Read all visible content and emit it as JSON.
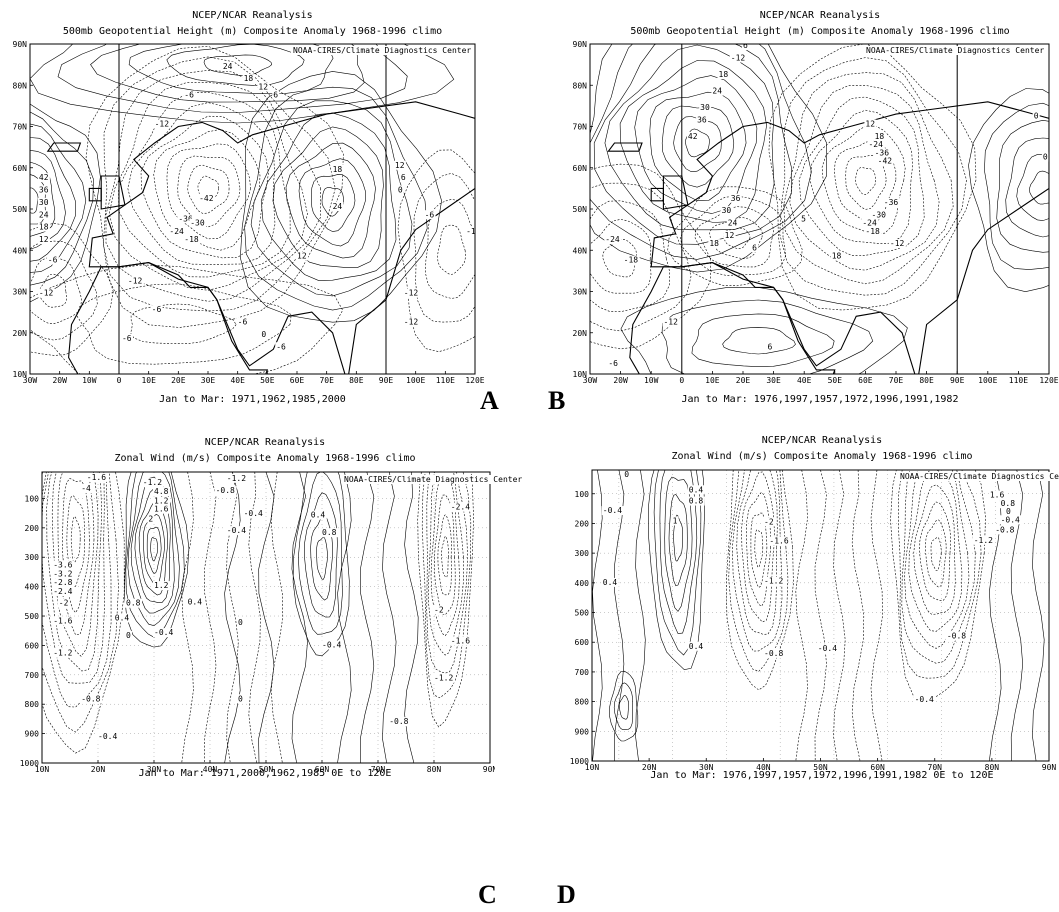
{
  "chart_data": [
    {
      "panel": "A",
      "type": "other",
      "header": "NCEP/NCAR Reanalysis",
      "title": "500mb Geopotential Height (m) Composite Anomaly 1968-1996 climo",
      "credit": "NOAA-CIRES/Climate Diagnostics Center",
      "caption": "Jan to Mar: 1971,1962,1985,2000",
      "x_ticks": [
        "30W",
        "20W",
        "10W",
        "0",
        "10E",
        "20E",
        "30E",
        "40E",
        "50E",
        "60E",
        "70E",
        "80E",
        "90E",
        "100E",
        "110E",
        "120E"
      ],
      "y_ticks": [
        "10N",
        "20N",
        "30N",
        "40N",
        "50N",
        "60N",
        "70N",
        "80N",
        "90N"
      ],
      "xlim": [
        -30,
        120
      ],
      "ylim": [
        10,
        90
      ],
      "contour_labels": [
        {
          "text": "24",
          "x": 35,
          "y": 84
        },
        {
          "text": "18",
          "x": 42,
          "y": 81
        },
        {
          "text": "12",
          "x": 47,
          "y": 79
        },
        {
          "text": "6",
          "x": 52,
          "y": 77
        },
        {
          "text": "-6",
          "x": 22,
          "y": 77
        },
        {
          "text": "-12",
          "x": 12,
          "y": 70
        },
        {
          "text": "-42",
          "x": 27,
          "y": 52
        },
        {
          "text": "-36",
          "x": 20,
          "y": 47
        },
        {
          "text": "-30",
          "x": 24,
          "y": 46
        },
        {
          "text": "-24",
          "x": 17,
          "y": 44
        },
        {
          "text": "-18",
          "x": 22,
          "y": 42
        },
        {
          "text": "18",
          "x": 72,
          "y": 59
        },
        {
          "text": "24",
          "x": 72,
          "y": 50
        },
        {
          "text": "12",
          "x": 60,
          "y": 38
        },
        {
          "text": "42",
          "x": -27,
          "y": 57
        },
        {
          "text": "36",
          "x": -27,
          "y": 54
        },
        {
          "text": "30",
          "x": -27,
          "y": 51
        },
        {
          "text": "24",
          "x": -27,
          "y": 48
        },
        {
          "text": "18",
          "x": -27,
          "y": 45
        },
        {
          "text": "12",
          "x": -27,
          "y": 42
        },
        {
          "text": "-6",
          "x": -24,
          "y": 37
        },
        {
          "text": "-12",
          "x": -27,
          "y": 29
        },
        {
          "text": "-12",
          "x": 3,
          "y": 32
        },
        {
          "text": "-6",
          "x": 11,
          "y": 25
        },
        {
          "text": "-6",
          "x": 40,
          "y": 22
        },
        {
          "text": "0",
          "x": 48,
          "y": 19
        },
        {
          "text": "-6",
          "x": 53,
          "y": 16
        },
        {
          "text": "12",
          "x": 93,
          "y": 60
        },
        {
          "text": "6",
          "x": 95,
          "y": 57
        },
        {
          "text": "0",
          "x": 94,
          "y": 54
        },
        {
          "text": "-6",
          "x": 103,
          "y": 48
        },
        {
          "text": "-12",
          "x": 117,
          "y": 44
        },
        {
          "text": "-12",
          "x": 96,
          "y": 29
        },
        {
          "text": "-12",
          "x": 96,
          "y": 22
        },
        {
          "text": "-6",
          "x": 1,
          "y": 18
        }
      ]
    },
    {
      "panel": "B",
      "type": "other",
      "header": "NCEP/NCAR Reanalysis",
      "title": "500mb Geopotential Height (m) Composite Anomaly 1968-1996 climo",
      "credit": "NOAA-CIRES/Climate Diagnostics Center",
      "caption": "Jan to Mar: 1976,1997,1957,1972,1996,1991,1982",
      "x_ticks": [
        "30W",
        "20W",
        "10W",
        "0",
        "10E",
        "20E",
        "30E",
        "40E",
        "50E",
        "60E",
        "70E",
        "80E",
        "90E",
        "100E",
        "110E",
        "120E"
      ],
      "y_ticks": [
        "10N",
        "20N",
        "30N",
        "40N",
        "50N",
        "60N",
        "70N",
        "80N",
        "90N"
      ],
      "xlim": [
        -30,
        120
      ],
      "ylim": [
        10,
        90
      ],
      "contour_labels": [
        {
          "text": "6",
          "x": 20,
          "y": 89
        },
        {
          "text": "-12",
          "x": 16,
          "y": 86
        },
        {
          "text": "18",
          "x": 12,
          "y": 82
        },
        {
          "text": "24",
          "x": 10,
          "y": 78
        },
        {
          "text": "30",
          "x": 6,
          "y": 74
        },
        {
          "text": "36",
          "x": 5,
          "y": 71
        },
        {
          "text": "42",
          "x": 2,
          "y": 67
        },
        {
          "text": "36",
          "x": 16,
          "y": 52
        },
        {
          "text": "30",
          "x": 13,
          "y": 49
        },
        {
          "text": "24",
          "x": 15,
          "y": 46
        },
        {
          "text": "12",
          "x": 14,
          "y": 43
        },
        {
          "text": "18",
          "x": 9,
          "y": 41
        },
        {
          "text": "6",
          "x": 23,
          "y": 40
        },
        {
          "text": "12",
          "x": 60,
          "y": 70
        },
        {
          "text": "18",
          "x": 63,
          "y": 67
        },
        {
          "text": "-24",
          "x": 61,
          "y": 65
        },
        {
          "text": "-36",
          "x": 63,
          "y": 63
        },
        {
          "text": "-42",
          "x": 64,
          "y": 61
        },
        {
          "text": "-36",
          "x": 66,
          "y": 51
        },
        {
          "text": "-30",
          "x": 62,
          "y": 48
        },
        {
          "text": "-24",
          "x": 59,
          "y": 46
        },
        {
          "text": "-18",
          "x": 60,
          "y": 44
        },
        {
          "text": "-12",
          "x": 68,
          "y": 41
        },
        {
          "text": "18",
          "x": 49,
          "y": 38
        },
        {
          "text": "0",
          "x": 115,
          "y": 72
        },
        {
          "text": "0",
          "x": 118,
          "y": 62
        },
        {
          "text": "-24",
          "x": -25,
          "y": 42
        },
        {
          "text": "-18",
          "x": -19,
          "y": 37
        },
        {
          "text": "-12",
          "x": -6,
          "y": 22
        },
        {
          "text": "-6",
          "x": -24,
          "y": 12
        },
        {
          "text": "6",
          "x": 28,
          "y": 16
        },
        {
          "text": "5",
          "x": 39,
          "y": 47
        }
      ]
    },
    {
      "panel": "C",
      "type": "other",
      "header": "NCEP/NCAR Reanalysis",
      "title": "Zonal Wind (m/s) Composite Anomaly 1968-1996 climo",
      "credit": "NOAA-CIRES/Climate Diagnostics Center",
      "caption": "Jan to Mar: 1971,2000,1962,1985 0E to 120E",
      "x_ticks": [
        "10N",
        "20N",
        "30N",
        "40N",
        "50N",
        "60N",
        "70N",
        "80N",
        "90N"
      ],
      "y_ticks": [
        "100",
        "200",
        "300",
        "400",
        "500",
        "600",
        "700",
        "800",
        "900",
        "1000"
      ],
      "xlim": [
        10,
        90
      ],
      "ylim": [
        1000,
        10
      ],
      "contour_labels": [
        {
          "text": "-1.6",
          "x": 18,
          "y": 37
        },
        {
          "text": "-4",
          "x": 17,
          "y": 75
        },
        {
          "text": "-3.6",
          "x": 12,
          "y": 335
        },
        {
          "text": "-3.2",
          "x": 12,
          "y": 365
        },
        {
          "text": "-2.8",
          "x": 12,
          "y": 395
        },
        {
          "text": "-2.4",
          "x": 12,
          "y": 425
        },
        {
          "text": "-2",
          "x": 13,
          "y": 465
        },
        {
          "text": "-1.6",
          "x": 12,
          "y": 525
        },
        {
          "text": "-1.2",
          "x": 12,
          "y": 635
        },
        {
          "text": "-0.8",
          "x": 17,
          "y": 790
        },
        {
          "text": "-0.4",
          "x": 20,
          "y": 918
        },
        {
          "text": "2",
          "x": 29,
          "y": 178
        },
        {
          "text": "1.6",
          "x": 30,
          "y": 145
        },
        {
          "text": "1.2",
          "x": 30,
          "y": 118
        },
        {
          "text": "4.8",
          "x": 30,
          "y": 85
        },
        {
          "text": "-1.2",
          "x": 28,
          "y": 55
        },
        {
          "text": "-0.8",
          "x": 41,
          "y": 82
        },
        {
          "text": "-1.2",
          "x": 43,
          "y": 40
        },
        {
          "text": "0.8",
          "x": 25,
          "y": 465
        },
        {
          "text": "0.4",
          "x": 23,
          "y": 515
        },
        {
          "text": "0",
          "x": 25,
          "y": 575
        },
        {
          "text": "-0.4",
          "x": 30,
          "y": 565
        },
        {
          "text": "1.2",
          "x": 30,
          "y": 405
        },
        {
          "text": "0.4",
          "x": 36,
          "y": 460
        },
        {
          "text": "-0.4",
          "x": 43,
          "y": 218
        },
        {
          "text": "-0.4",
          "x": 46,
          "y": 160
        },
        {
          "text": "0.4",
          "x": 58,
          "y": 165
        },
        {
          "text": "0.8",
          "x": 60,
          "y": 225
        },
        {
          "text": "0",
          "x": 45,
          "y": 530
        },
        {
          "text": "0",
          "x": 45,
          "y": 790
        },
        {
          "text": "-0.4",
          "x": 60,
          "y": 607
        },
        {
          "text": "-2.4",
          "x": 83,
          "y": 138
        },
        {
          "text": "-2",
          "x": 80,
          "y": 488
        },
        {
          "text": "-1.6",
          "x": 83,
          "y": 593
        },
        {
          "text": "-1.2",
          "x": 80,
          "y": 720
        },
        {
          "text": "-0.8",
          "x": 72,
          "y": 868
        }
      ]
    },
    {
      "panel": "D",
      "type": "other",
      "header": "NCEP/NCAR Reanalysis",
      "title": "Zonal Wind (m/s) Composite Anomaly 1968-1996 climo",
      "credit": "NOAA-CIRES/Climate Diagnostics Center",
      "caption": "Jan to Mar: 1976,1997,1957,1972,1996,1991,1982 0E to 120E",
      "x_ticks": [
        "10N",
        "20N",
        "30N",
        "40N",
        "50N",
        "60N",
        "70N",
        "80N",
        "90N"
      ],
      "y_ticks": [
        "100",
        "200",
        "300",
        "400",
        "500",
        "600",
        "700",
        "800",
        "900",
        "1000"
      ],
      "xlim": [
        5,
        90
      ],
      "ylim": [
        1000,
        20
      ],
      "contour_labels": [
        {
          "text": "0",
          "x": 11,
          "y": 43
        },
        {
          "text": "-0.4",
          "x": 7,
          "y": 165
        },
        {
          "text": "0.4",
          "x": 23,
          "y": 95
        },
        {
          "text": "0.8",
          "x": 23,
          "y": 133
        },
        {
          "text": "1",
          "x": 20,
          "y": 200
        },
        {
          "text": "0.4",
          "x": 7,
          "y": 407
        },
        {
          "text": "0.4",
          "x": 23,
          "y": 622
        },
        {
          "text": "-2",
          "x": 37,
          "y": 203
        },
        {
          "text": "-1.6",
          "x": 38,
          "y": 268
        },
        {
          "text": "-1.2",
          "x": 37,
          "y": 403
        },
        {
          "text": "-0.8",
          "x": 37,
          "y": 646
        },
        {
          "text": "-0.4",
          "x": 47,
          "y": 630
        },
        {
          "text": "1.6",
          "x": 79,
          "y": 113
        },
        {
          "text": "0.8",
          "x": 81,
          "y": 142
        },
        {
          "text": "0",
          "x": 82,
          "y": 168
        },
        {
          "text": "-0.4",
          "x": 81,
          "y": 196
        },
        {
          "text": "-0.8",
          "x": 80,
          "y": 230
        },
        {
          "text": "-1.2",
          "x": 76,
          "y": 265
        },
        {
          "text": "-0.8",
          "x": 71,
          "y": 588
        },
        {
          "text": "-0.4",
          "x": 65,
          "y": 802
        }
      ]
    }
  ],
  "labels": {
    "a": "A",
    "b": "B",
    "c": "C",
    "d": "D"
  }
}
